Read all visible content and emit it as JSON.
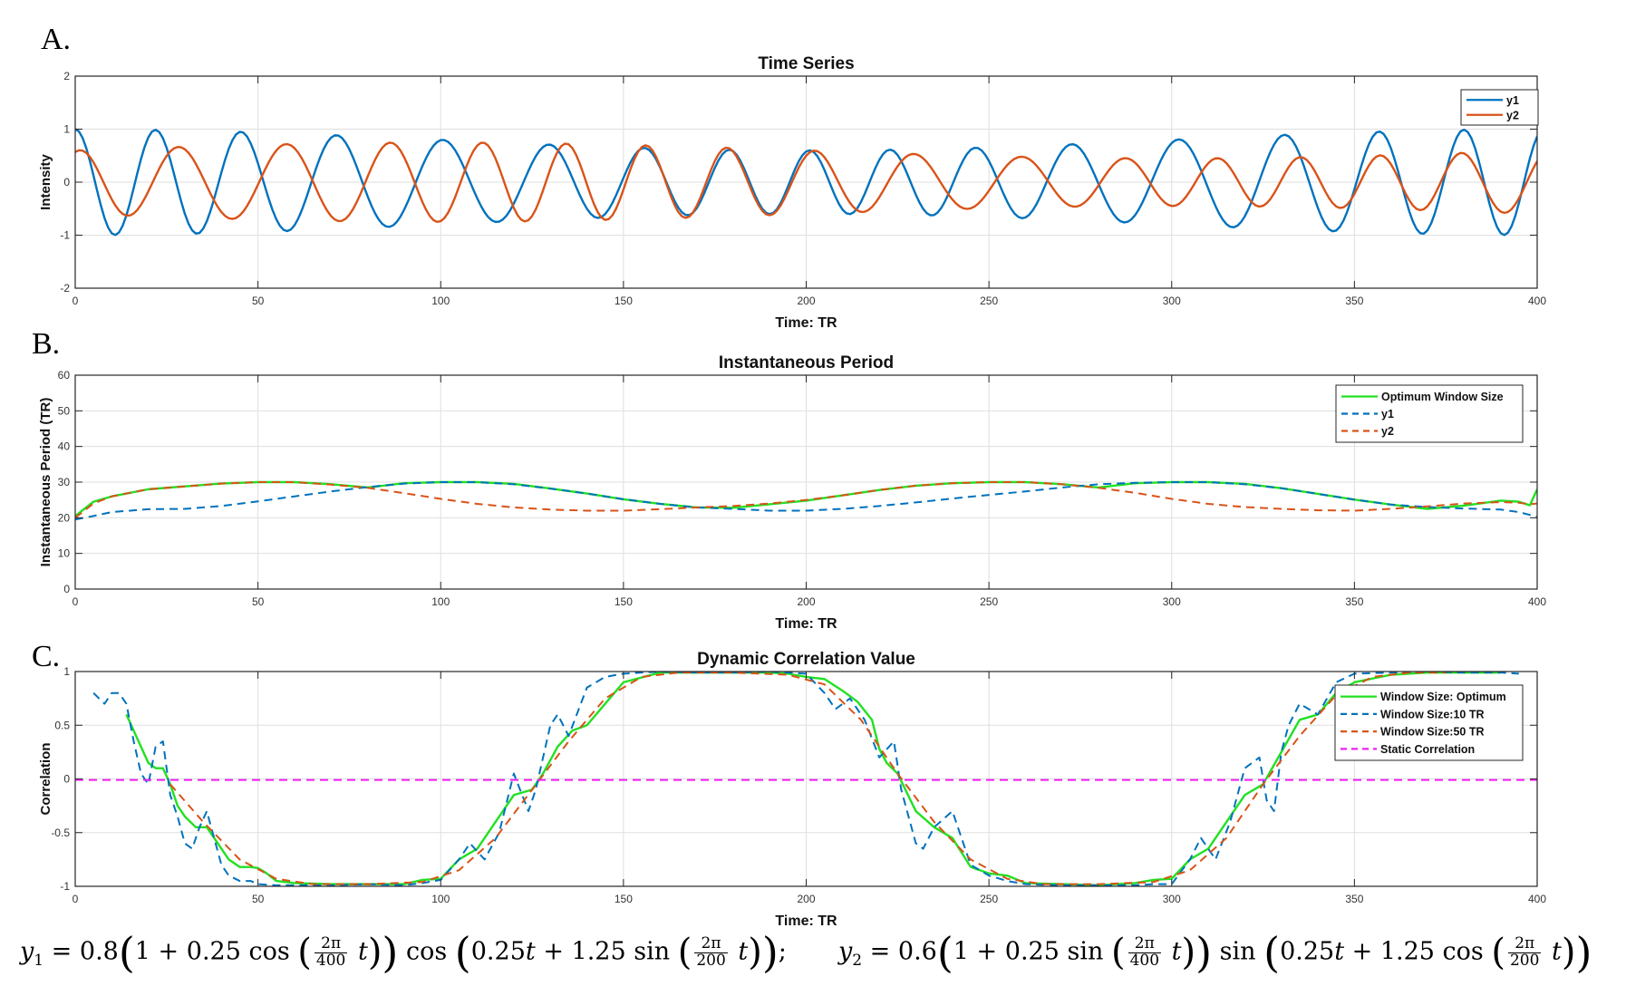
{
  "colors": {
    "y1": "#0072BD",
    "y2": "#D95319",
    "optimum": "#22E022",
    "window10": "#0072BD",
    "window50": "#D95319",
    "static": "#F020F0",
    "axis": "#262626",
    "grid": "#DFDFDF"
  },
  "panels": [
    {
      "letter": "A."
    },
    {
      "letter": "B."
    },
    {
      "letter": "C."
    }
  ],
  "chart_data": [
    {
      "type": "line",
      "title": "Time Series",
      "xlabel": "Time: TR",
      "ylabel": "Intensity",
      "xlim": [
        0,
        400
      ],
      "ylim": [
        -2,
        2
      ],
      "xticks": [
        0,
        50,
        100,
        150,
        200,
        250,
        300,
        350,
        400
      ],
      "yticks": [
        -2,
        -1,
        0,
        1,
        2
      ],
      "grid": true,
      "legend_position": "top-right",
      "sample_step": 1,
      "series": [
        {
          "name": "y1",
          "color": "#0072BD",
          "style": "solid",
          "values": []
        },
        {
          "name": "y2",
          "color": "#D95319",
          "style": "solid",
          "values": []
        }
      ]
    },
    {
      "type": "line",
      "title": "Instantaneous Period",
      "xlabel": "Time: TR",
      "ylabel": "Instantaneous Period (TR)",
      "xlim": [
        0,
        400
      ],
      "ylim": [
        0,
        60
      ],
      "xticks": [
        0,
        50,
        100,
        150,
        200,
        250,
        300,
        350,
        400
      ],
      "yticks": [
        0,
        10,
        20,
        30,
        40,
        50,
        60
      ],
      "grid": true,
      "legend_position": "top-right",
      "x": [
        0,
        5,
        10,
        20,
        30,
        40,
        50,
        60,
        70,
        80,
        90,
        100,
        110,
        120,
        130,
        140,
        150,
        160,
        170,
        180,
        190,
        200,
        210,
        220,
        230,
        240,
        250,
        260,
        270,
        280,
        290,
        300,
        310,
        320,
        330,
        340,
        350,
        360,
        370,
        380,
        390,
        395,
        398,
        400
      ],
      "series": [
        {
          "name": "Optimum Window Size",
          "color": "#22E022",
          "style": "solid",
          "values": [
            20.5,
            24.5,
            26.0,
            28.0,
            28.8,
            29.6,
            30.0,
            30.0,
            29.4,
            28.5,
            29.7,
            30.0,
            30.0,
            29.5,
            28.2,
            26.8,
            25.2,
            23.9,
            22.9,
            22.8,
            23.8,
            24.8,
            26.3,
            27.8,
            29.0,
            29.7,
            30.0,
            30.0,
            29.4,
            28.5,
            29.7,
            30.0,
            30.0,
            29.5,
            28.3,
            26.7,
            25.1,
            23.7,
            22.5,
            23.4,
            24.8,
            24.5,
            23.5,
            28.0
          ]
        },
        {
          "name": "y1",
          "color": "#0072BD",
          "style": "dashed",
          "values": [
            19.5,
            20.5,
            21.6,
            22.4,
            22.5,
            23.3,
            24.6,
            26.0,
            27.4,
            28.6,
            29.6,
            30.0,
            30.0,
            29.4,
            28.2,
            26.8,
            25.2,
            23.9,
            22.9,
            22.5,
            22.0,
            22.0,
            22.5,
            23.3,
            24.3,
            25.4,
            26.4,
            27.4,
            28.5,
            29.4,
            29.8,
            30.0,
            30.0,
            29.4,
            28.3,
            26.7,
            25.1,
            23.7,
            23.0,
            22.6,
            22.3,
            21.6,
            20.8,
            20.2
          ]
        },
        {
          "name": "y2",
          "color": "#D95319",
          "style": "dashed",
          "values": [
            20.0,
            24.0,
            26.0,
            28.0,
            28.8,
            29.6,
            30.0,
            30.0,
            29.3,
            28.4,
            26.9,
            25.3,
            23.9,
            22.9,
            22.3,
            22.0,
            22.0,
            22.4,
            22.9,
            23.3,
            24.0,
            25.0,
            26.3,
            27.8,
            29.0,
            29.7,
            30.0,
            30.0,
            29.4,
            28.4,
            27.0,
            25.3,
            23.9,
            23.0,
            22.5,
            22.1,
            22.0,
            22.5,
            23.2,
            24.0,
            24.4,
            24.2,
            23.8,
            24.0
          ]
        }
      ]
    },
    {
      "type": "line",
      "title": "Dynamic Correlation Value",
      "xlabel": "Time: TR",
      "ylabel": "Correlation",
      "xlim": [
        0,
        400
      ],
      "ylim": [
        -1,
        1
      ],
      "xticks": [
        0,
        50,
        100,
        150,
        200,
        250,
        300,
        350,
        400
      ],
      "yticks": [
        -1,
        -0.5,
        0,
        0.5,
        1
      ],
      "grid": true,
      "legend_position": "top-right",
      "series": [
        {
          "name": "Window Size: Optimum",
          "color": "#22E022",
          "style": "solid",
          "x": [
            14,
            18,
            20,
            22,
            24,
            26,
            28,
            30,
            33,
            36,
            39,
            42,
            45,
            48,
            50,
            52,
            55,
            60,
            70,
            80,
            90,
            95,
            100,
            105,
            110,
            115,
            120,
            125,
            128,
            132,
            136,
            140,
            145,
            150,
            160,
            170,
            180,
            190,
            195,
            200,
            205,
            210,
            214,
            218,
            220,
            222,
            225,
            230,
            235,
            240,
            245,
            250,
            255,
            260,
            270,
            280,
            290,
            295,
            300,
            305,
            310,
            315,
            320,
            325,
            330,
            335,
            340,
            345,
            350,
            360,
            370,
            380,
            390
          ],
          "values": [
            0.6,
            0.3,
            0.15,
            0.1,
            0.1,
            -0.05,
            -0.25,
            -0.35,
            -0.45,
            -0.45,
            -0.6,
            -0.75,
            -0.82,
            -0.82,
            -0.83,
            -0.87,
            -0.95,
            -0.97,
            -0.98,
            -0.98,
            -0.98,
            -0.94,
            -0.93,
            -0.75,
            -0.65,
            -0.4,
            -0.15,
            -0.1,
            0.05,
            0.3,
            0.45,
            0.5,
            0.7,
            0.9,
            0.99,
            0.99,
            0.99,
            0.99,
            0.98,
            0.95,
            0.93,
            0.82,
            0.72,
            0.55,
            0.28,
            0.15,
            0.05,
            -0.3,
            -0.45,
            -0.55,
            -0.82,
            -0.88,
            -0.9,
            -0.97,
            -0.98,
            -0.99,
            -0.97,
            -0.94,
            -0.93,
            -0.75,
            -0.65,
            -0.4,
            -0.15,
            -0.05,
            0.25,
            0.55,
            0.6,
            0.8,
            0.9,
            0.97,
            0.99,
            0.99,
            0.99
          ]
        },
        {
          "name": "Window Size:10 TR",
          "color": "#0072BD",
          "style": "dashed",
          "x": [
            5,
            8,
            10,
            12,
            14,
            16,
            18,
            20,
            22,
            24,
            26,
            28,
            30,
            32,
            34,
            36,
            38,
            40,
            42,
            45,
            48,
            50,
            55,
            60,
            70,
            80,
            90,
            95,
            100,
            105,
            108,
            112,
            116,
            120,
            124,
            126,
            128,
            130,
            132,
            135,
            140,
            145,
            150,
            155,
            160,
            170,
            180,
            190,
            200,
            205,
            208,
            212,
            216,
            220,
            224,
            226,
            228,
            230,
            232,
            235,
            240,
            245,
            250,
            255,
            260,
            270,
            280,
            290,
            295,
            300,
            305,
            308,
            312,
            316,
            320,
            324,
            326,
            328,
            330,
            332,
            335,
            340,
            345,
            350,
            360,
            370,
            380,
            390,
            395
          ],
          "values": [
            0.8,
            0.7,
            0.8,
            0.8,
            0.7,
            0.35,
            0.05,
            -0.05,
            0.3,
            0.35,
            -0.15,
            -0.35,
            -0.6,
            -0.65,
            -0.45,
            -0.3,
            -0.55,
            -0.8,
            -0.9,
            -0.95,
            -0.95,
            -0.98,
            -0.99,
            -0.99,
            -0.99,
            -0.98,
            -0.99,
            -0.97,
            -0.94,
            -0.75,
            -0.6,
            -0.75,
            -0.5,
            0.05,
            -0.3,
            -0.1,
            0.2,
            0.5,
            0.6,
            0.4,
            0.85,
            0.95,
            0.98,
            0.99,
            1.0,
            0.99,
            0.99,
            1.0,
            0.98,
            0.8,
            0.65,
            0.75,
            0.55,
            0.2,
            0.35,
            -0.1,
            -0.35,
            -0.6,
            -0.65,
            -0.45,
            -0.3,
            -0.8,
            -0.9,
            -0.95,
            -0.98,
            -0.99,
            -0.99,
            -0.99,
            -0.98,
            -0.98,
            -0.75,
            -0.55,
            -0.75,
            -0.4,
            0.1,
            0.2,
            -0.2,
            -0.3,
            0.25,
            0.5,
            0.7,
            0.6,
            0.9,
            0.98,
            0.99,
            1.0,
            0.99,
            0.99,
            0.98
          ]
        },
        {
          "name": "Window Size:50 TR",
          "color": "#D95319",
          "style": "dashed",
          "x": [
            26,
            35,
            45,
            55,
            65,
            80,
            95,
            105,
            115,
            125,
            135,
            145,
            155,
            165,
            180,
            195,
            205,
            215,
            225,
            235,
            245,
            255,
            265,
            280,
            295,
            305,
            315,
            325,
            335,
            345,
            355,
            365,
            375
          ],
          "values": [
            -0.05,
            -0.4,
            -0.75,
            -0.93,
            -0.98,
            -0.98,
            -0.96,
            -0.85,
            -0.55,
            -0.1,
            0.35,
            0.75,
            0.95,
            0.99,
            0.99,
            0.97,
            0.88,
            0.55,
            0.05,
            -0.4,
            -0.75,
            -0.93,
            -0.98,
            -0.98,
            -0.96,
            -0.85,
            -0.55,
            -0.05,
            0.4,
            0.78,
            0.95,
            0.99,
            0.99
          ]
        },
        {
          "name": "Static Correlation",
          "color": "#F020F0",
          "style": "dashed",
          "x": [
            0,
            400
          ],
          "values": [
            -0.01,
            -0.01
          ]
        }
      ]
    }
  ],
  "equations": {
    "y1": {
      "lhs": "y",
      "sub": "1",
      "coef": "0.8",
      "amp_func": "cos",
      "amp_num": "2π",
      "amp_den": "400",
      "main_func": "cos",
      "phase_func": "sin",
      "phase_num": "2π",
      "phase_den": "200",
      "tail": ";"
    },
    "y2": {
      "lhs": "y",
      "sub": "2",
      "coef": "0.6",
      "amp_func": "sin",
      "amp_num": "2π",
      "amp_den": "400",
      "main_func": "sin",
      "phase_func": "cos",
      "phase_num": "2π",
      "phase_den": "200",
      "tail": ""
    }
  }
}
